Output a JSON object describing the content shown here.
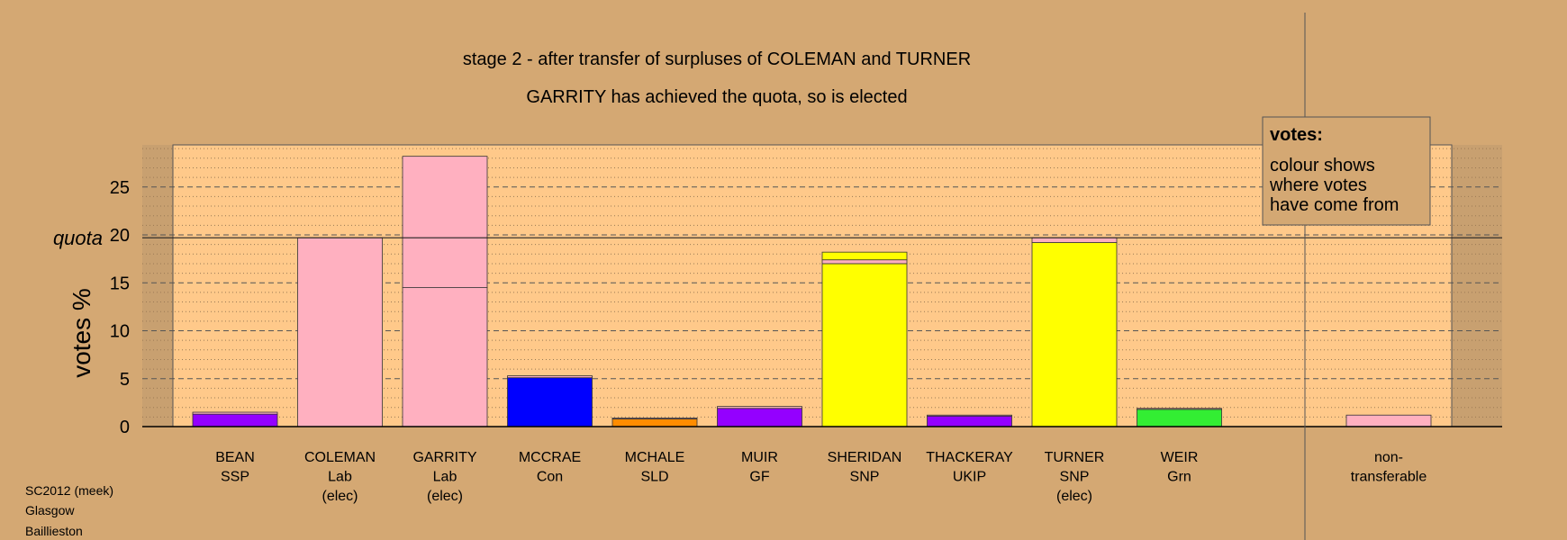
{
  "chart_data": {
    "type": "bar",
    "stacked": true,
    "title": "stage 2 - after transfer of surpluses of COLEMAN and TURNER",
    "subtitle": "GARRITY has achieved the quota, so is elected",
    "ylabel": "votes %",
    "quota_label": "quota",
    "quota": 19.7,
    "ylim": [
      0,
      29.5
    ],
    "yticks": [
      0,
      5,
      10,
      15,
      20,
      25
    ],
    "grid": true,
    "legend": {
      "placement": "top-right",
      "title": "votes:",
      "lines": [
        "colour shows",
        "where votes",
        "have come from"
      ]
    },
    "candidates": [
      {
        "name": "BEAN",
        "party": "SSP",
        "status": "",
        "segments": [
          {
            "value": 1.3,
            "color": "#9400ff"
          },
          {
            "value": 0.2,
            "color": "#ffb0c0"
          }
        ]
      },
      {
        "name": "COLEMAN",
        "party": "Lab",
        "status": "(elec)",
        "segments": [
          {
            "value": 19.7,
            "color": "#ffb0c0"
          }
        ]
      },
      {
        "name": "GARRITY",
        "party": "Lab",
        "status": "(elec)",
        "segments": [
          {
            "value": 14.5,
            "color": "#ffb0c0"
          },
          {
            "value": 13.7,
            "color": "#ffb0c0"
          }
        ]
      },
      {
        "name": "MCCRAE",
        "party": "Con",
        "status": "",
        "segments": [
          {
            "value": 5.1,
            "color": "#0000ff"
          },
          {
            "value": 0.2,
            "color": "#ffb0c0"
          }
        ]
      },
      {
        "name": "MCHALE",
        "party": "SLD",
        "status": "",
        "segments": [
          {
            "value": 0.8,
            "color": "#ff8c00"
          },
          {
            "value": 0.1,
            "color": "#ffb0c0"
          }
        ]
      },
      {
        "name": "MUIR",
        "party": "GF",
        "status": "",
        "segments": [
          {
            "value": 1.9,
            "color": "#9400ff"
          },
          {
            "value": 0.2,
            "color": "#ffb0c0"
          }
        ]
      },
      {
        "name": "SHERIDAN",
        "party": "SNP",
        "status": "",
        "segments": [
          {
            "value": 17.0,
            "color": "#ffff00"
          },
          {
            "value": 0.4,
            "color": "#ffb0c0"
          },
          {
            "value": 0.8,
            "color": "#ffff00"
          }
        ]
      },
      {
        "name": "THACKERAY",
        "party": "UKIP",
        "status": "",
        "segments": [
          {
            "value": 1.1,
            "color": "#9400ff"
          },
          {
            "value": 0.1,
            "color": "#ffb0c0"
          }
        ]
      },
      {
        "name": "TURNER",
        "party": "SNP",
        "status": "(elec)",
        "segments": [
          {
            "value": 19.2,
            "color": "#ffff00"
          },
          {
            "value": 0.5,
            "color": "#ffb0c0"
          }
        ]
      },
      {
        "name": "WEIR",
        "party": "Grn",
        "status": "",
        "segments": [
          {
            "value": 1.8,
            "color": "#33ee33"
          },
          {
            "value": 0.1,
            "color": "#ffb0c0"
          }
        ]
      }
    ],
    "nontransferable": {
      "name": "non-",
      "party": "transferable",
      "value": 1.2,
      "color": "#ffb0c0"
    }
  },
  "footnote": {
    "line1": "SC2012 (meek)",
    "line2": "Glasgow",
    "line3": "Baillieston"
  },
  "colors": {
    "background": "#d4a873",
    "plot_area": "#ffc98a",
    "outer_band": "#c8a070"
  }
}
